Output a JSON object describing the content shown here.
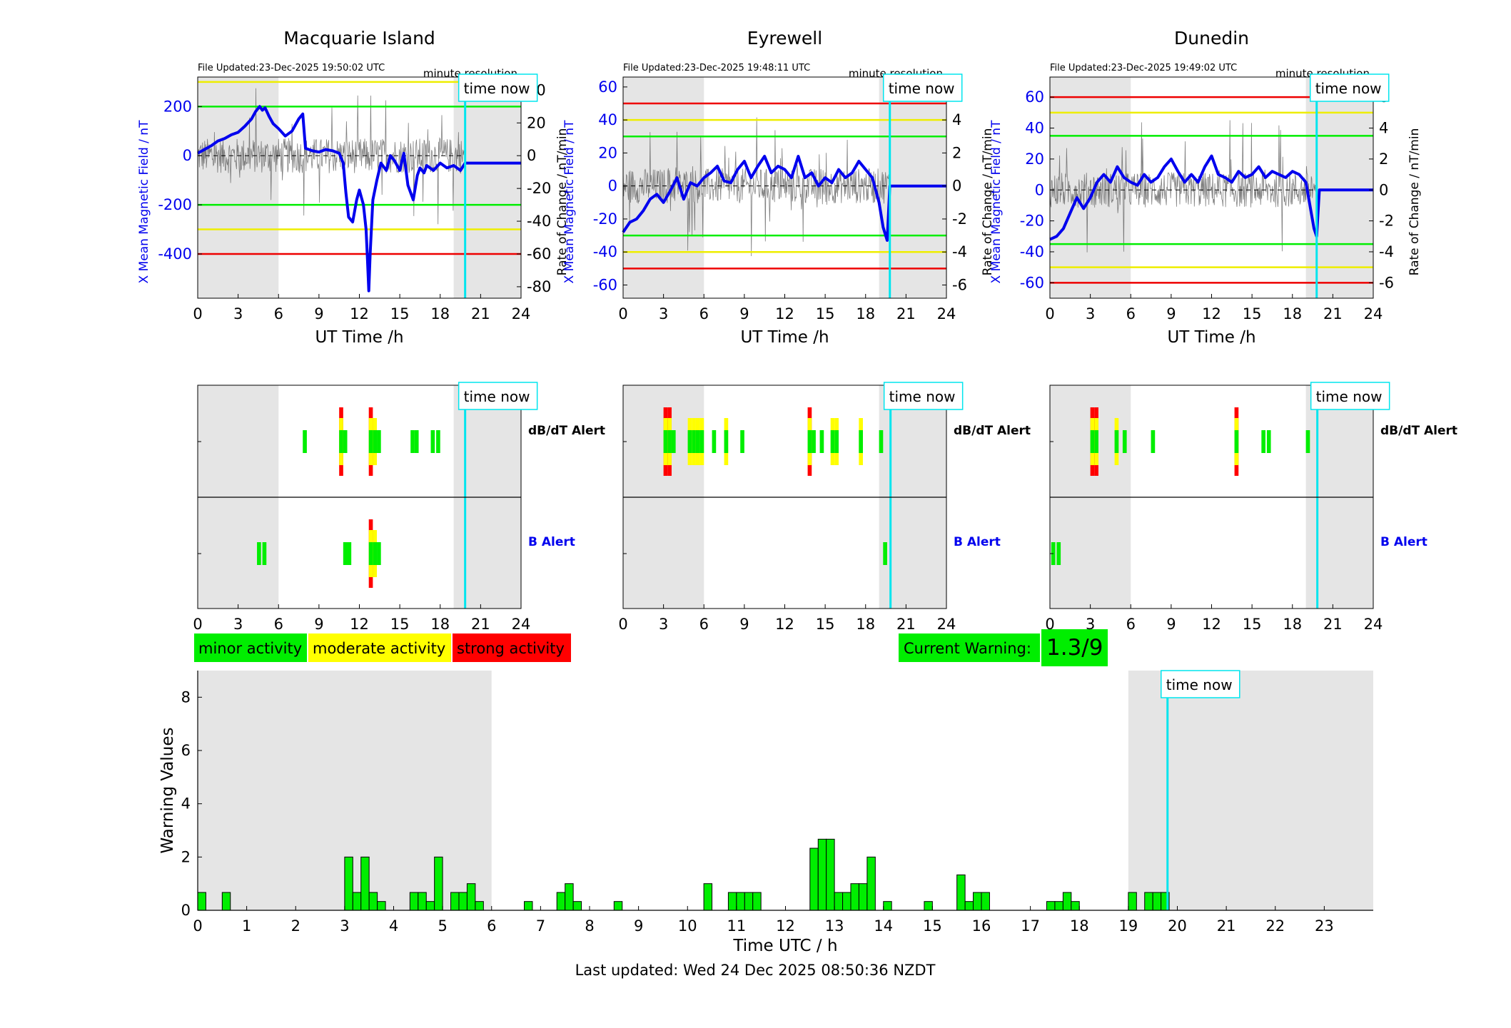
{
  "footer": {
    "last_updated": "Last updated: Wed 24 Dec 2025 08:50:36 NZDT"
  },
  "now_label": "time now",
  "legend": {
    "minor": "minor activity",
    "moderate": "moderate activity",
    "strong": "strong activity"
  },
  "colors": {
    "minor": "#00ee00",
    "moderate": "#ffff00",
    "strong": "#ff0000",
    "now_line": "#00e5ee",
    "field": "#0000ee",
    "shade": "#e5e5e5"
  },
  "current_warning": {
    "label": "Current Warning:",
    "value": "1.3/9"
  },
  "chart_data": [
    {
      "type": "line",
      "title": "Macquarie Island",
      "file_updated": "File Updated:23-Dec-2025 19:50:02 UTC",
      "resolution": "minute resolution",
      "xlabel": "UT Time /h",
      "ylabel": "X Mean Magnetic Field / nT",
      "y2label": "Rate of Change / nT/min",
      "xlim": [
        0,
        24
      ],
      "ylim": [
        -580,
        320
      ],
      "y2lim": [
        -87,
        48
      ],
      "xticks": [
        0,
        3,
        6,
        9,
        12,
        15,
        18,
        21,
        24
      ],
      "yticks": [
        -400,
        -200,
        0,
        200
      ],
      "y2ticks": [
        -80,
        -60,
        -40,
        -20,
        0,
        20,
        40
      ],
      "shade": [
        [
          0,
          6
        ],
        [
          19,
          24
        ]
      ],
      "now": 19.85,
      "thresholds": [
        {
          "y": 300,
          "color": "yellow"
        },
        {
          "y": 200,
          "color": "green"
        },
        {
          "y": -200,
          "color": "green"
        },
        {
          "y": -300,
          "color": "yellow"
        },
        {
          "y": -400,
          "color": "red"
        }
      ],
      "x": [
        0,
        0.5,
        1,
        1.5,
        2,
        2.5,
        3,
        3.5,
        4,
        4.3,
        4.6,
        4.8,
        5,
        5.3,
        5.6,
        6,
        6.5,
        7,
        7.5,
        7.8,
        8,
        8.5,
        9,
        9.5,
        10,
        10.5,
        10.8,
        11,
        11.2,
        11.5,
        11.8,
        12,
        12.3,
        12.5,
        12.6,
        12.7,
        12.8,
        13,
        13.3,
        13.6,
        14,
        14.3,
        14.6,
        15,
        15.3,
        15.6,
        16,
        16.3,
        16.5,
        16.8,
        17,
        17.5,
        18,
        18.5,
        19,
        19.5,
        19.85,
        20,
        24
      ],
      "values": [
        10,
        25,
        40,
        60,
        70,
        85,
        95,
        120,
        150,
        180,
        200,
        185,
        195,
        160,
        130,
        110,
        80,
        100,
        150,
        170,
        30,
        20,
        15,
        25,
        20,
        10,
        -30,
        -150,
        -250,
        -270,
        -180,
        -140,
        -200,
        -300,
        -420,
        -550,
        -400,
        -180,
        -100,
        -30,
        -60,
        0,
        -20,
        -60,
        10,
        -120,
        -180,
        -80,
        -50,
        -70,
        -40,
        -60,
        -30,
        -50,
        -40,
        -60,
        -30,
        -30,
        -30
      ]
    },
    {
      "type": "line",
      "title": "Eyrewell",
      "file_updated": "File Updated:23-Dec-2025 19:48:11 UTC",
      "resolution": "minute resolution",
      "xlabel": "UT Time /h",
      "ylabel": "X Mean Magnetic Field / nT",
      "y2label": "Rate of Change / nT/min",
      "xlim": [
        0,
        24
      ],
      "ylim": [
        -68,
        66
      ],
      "y2lim": [
        -6.8,
        6.6
      ],
      "xticks": [
        0,
        3,
        6,
        9,
        12,
        15,
        18,
        21,
        24
      ],
      "yticks": [
        -60,
        -40,
        -20,
        0,
        20,
        40,
        60
      ],
      "y2ticks": [
        -6,
        -4,
        -2,
        0,
        2,
        4,
        6
      ],
      "shade": [
        [
          0,
          6
        ],
        [
          19,
          24
        ]
      ],
      "now": 19.8,
      "thresholds": [
        {
          "y": 50,
          "color": "red"
        },
        {
          "y": 40,
          "color": "yellow"
        },
        {
          "y": 30,
          "color": "green"
        },
        {
          "y": -30,
          "color": "green"
        },
        {
          "y": -40,
          "color": "yellow"
        },
        {
          "y": -50,
          "color": "red"
        }
      ],
      "x": [
        0,
        0.5,
        1,
        1.5,
        2,
        2.5,
        3,
        3.5,
        4,
        4.5,
        5,
        5.5,
        6,
        6.5,
        7,
        7.5,
        8,
        8.5,
        9,
        9.5,
        10,
        10.5,
        11,
        11.5,
        12,
        12.5,
        13,
        13.5,
        14,
        14.5,
        15,
        15.5,
        16,
        16.5,
        17,
        17.5,
        18,
        18.5,
        19,
        19.3,
        19.6,
        19.8,
        20,
        24
      ],
      "values": [
        -28,
        -22,
        -20,
        -15,
        -8,
        -5,
        -10,
        -3,
        5,
        -8,
        2,
        0,
        5,
        8,
        12,
        3,
        2,
        10,
        15,
        5,
        12,
        18,
        8,
        12,
        10,
        5,
        18,
        5,
        8,
        0,
        5,
        2,
        10,
        5,
        8,
        15,
        10,
        5,
        -10,
        -25,
        -33,
        0,
        0,
        0
      ]
    },
    {
      "type": "line",
      "title": "Dunedin",
      "file_updated": "File Updated:23-Dec-2025 19:49:02 UTC",
      "resolution": "minute resolution",
      "xlabel": "UT Time /h",
      "ylabel": "X Mean Magnetic Field / nT",
      "y2label": "Rate of Change / nT/min",
      "xlim": [
        0,
        24
      ],
      "ylim": [
        -70,
        73
      ],
      "y2lim": [
        -7,
        7.3
      ],
      "xticks": [
        0,
        3,
        6,
        9,
        12,
        15,
        18,
        21,
        24
      ],
      "yticks": [
        -60,
        -40,
        -20,
        0,
        20,
        40,
        60
      ],
      "y2ticks": [
        -6,
        -4,
        -2,
        0,
        2,
        4,
        6
      ],
      "shade": [
        [
          0,
          6
        ],
        [
          19,
          24
        ]
      ],
      "now": 19.8,
      "thresholds": [
        {
          "y": 60,
          "color": "red"
        },
        {
          "y": 50,
          "color": "yellow"
        },
        {
          "y": 35,
          "color": "green"
        },
        {
          "y": -35,
          "color": "green"
        },
        {
          "y": -50,
          "color": "yellow"
        },
        {
          "y": -60,
          "color": "red"
        }
      ],
      "x": [
        0,
        0.5,
        1,
        1.5,
        2,
        2.5,
        3,
        3.5,
        4,
        4.5,
        5,
        5.5,
        6,
        6.5,
        7,
        7.5,
        8,
        8.5,
        9,
        9.5,
        10,
        10.5,
        11,
        11.5,
        12,
        12.5,
        13,
        13.5,
        14,
        14.5,
        15,
        15.5,
        16,
        16.5,
        17,
        17.5,
        18,
        18.5,
        19,
        19.3,
        19.6,
        19.8,
        20,
        24
      ],
      "values": [
        -32,
        -30,
        -25,
        -15,
        -5,
        -12,
        -5,
        5,
        10,
        5,
        15,
        8,
        5,
        3,
        10,
        5,
        8,
        15,
        20,
        12,
        5,
        10,
        5,
        15,
        22,
        10,
        8,
        5,
        12,
        8,
        10,
        15,
        8,
        12,
        10,
        8,
        12,
        10,
        5,
        -10,
        -25,
        -30,
        0,
        0
      ]
    },
    {
      "type": "bar",
      "title": "",
      "panels": [
        "Macquarie Island",
        "Eyrewell",
        "Dunedin"
      ],
      "rows": [
        "dB/dT Alert",
        "B Alert"
      ],
      "xlim": [
        0,
        24
      ],
      "xticks": [
        0,
        3,
        6,
        9,
        12,
        15,
        18,
        21,
        24
      ],
      "shade": [
        [
          0,
          6
        ],
        [
          19,
          24
        ]
      ],
      "now": 19.85,
      "level_scale": "1 = minor activity, 2 = moderate activity, 3 = strong activity",
      "alerts": [
        {
          "dbdt": [
            [
              7.8,
              1
            ],
            [
              10.5,
              3
            ],
            [
              10.8,
              1
            ],
            [
              12.7,
              3
            ],
            [
              13.0,
              2
            ],
            [
              13.3,
              1
            ],
            [
              15.8,
              1
            ],
            [
              16.1,
              1
            ],
            [
              17.3,
              1
            ],
            [
              17.7,
              1
            ]
          ],
          "b": [
            [
              4.4,
              1
            ],
            [
              4.8,
              1
            ],
            [
              10.8,
              1
            ],
            [
              11.1,
              1
            ],
            [
              12.7,
              3
            ],
            [
              13.0,
              2
            ],
            [
              13.3,
              1
            ]
          ]
        },
        {
          "dbdt": [
            [
              3.0,
              3
            ],
            [
              3.3,
              3
            ],
            [
              3.6,
              1
            ],
            [
              4.8,
              2
            ],
            [
              5.1,
              2
            ],
            [
              5.4,
              2
            ],
            [
              5.7,
              2
            ],
            [
              6.6,
              1
            ],
            [
              7.5,
              2
            ],
            [
              8.7,
              1
            ],
            [
              13.7,
              3
            ],
            [
              14.0,
              1
            ],
            [
              14.6,
              1
            ],
            [
              15.4,
              2
            ],
            [
              15.7,
              2
            ],
            [
              17.5,
              2
            ],
            [
              19.0,
              1
            ]
          ],
          "b": [
            [
              19.3,
              1
            ]
          ]
        },
        {
          "dbdt": [
            [
              3.0,
              3
            ],
            [
              3.3,
              3
            ],
            [
              4.8,
              2
            ],
            [
              5.4,
              1
            ],
            [
              7.5,
              1
            ],
            [
              13.7,
              3
            ],
            [
              15.7,
              1
            ],
            [
              16.1,
              1
            ],
            [
              19.0,
              1
            ]
          ],
          "b": [
            [
              0.1,
              1
            ],
            [
              0.5,
              1
            ]
          ]
        }
      ]
    },
    {
      "type": "bar",
      "title": "",
      "xlabel": "Time UTC / h",
      "ylabel": "Warning Values",
      "xlim": [
        0,
        24
      ],
      "ylim": [
        0,
        9
      ],
      "xticks": [
        0,
        1,
        2,
        3,
        4,
        5,
        6,
        7,
        8,
        9,
        10,
        11,
        12,
        13,
        14,
        15,
        16,
        17,
        18,
        19,
        20,
        21,
        22,
        23
      ],
      "yticks": [
        0,
        2,
        4,
        6,
        8
      ],
      "shade": [
        [
          0,
          6
        ],
        [
          19,
          24
        ]
      ],
      "now": 19.8,
      "bar_width": 0.1667,
      "bars": [
        [
          0.0,
          0.67
        ],
        [
          0.5,
          0.67
        ],
        [
          3.0,
          2.0
        ],
        [
          3.167,
          0.67
        ],
        [
          3.333,
          2.0
        ],
        [
          3.5,
          0.67
        ],
        [
          3.667,
          0.33
        ],
        [
          4.333,
          0.67
        ],
        [
          4.5,
          0.67
        ],
        [
          4.667,
          0.33
        ],
        [
          4.833,
          2.0
        ],
        [
          5.167,
          0.67
        ],
        [
          5.333,
          0.67
        ],
        [
          5.5,
          1.0
        ],
        [
          5.667,
          0.33
        ],
        [
          6.667,
          0.33
        ],
        [
          7.333,
          0.67
        ],
        [
          7.5,
          1.0
        ],
        [
          7.667,
          0.33
        ],
        [
          8.5,
          0.33
        ],
        [
          10.333,
          1.0
        ],
        [
          10.833,
          0.67
        ],
        [
          11.0,
          0.67
        ],
        [
          11.167,
          0.67
        ],
        [
          11.333,
          0.67
        ],
        [
          12.5,
          2.33
        ],
        [
          12.667,
          2.67
        ],
        [
          12.833,
          2.67
        ],
        [
          13.0,
          0.67
        ],
        [
          13.167,
          0.67
        ],
        [
          13.333,
          1.0
        ],
        [
          13.5,
          1.0
        ],
        [
          13.667,
          2.0
        ],
        [
          14.0,
          0.33
        ],
        [
          14.833,
          0.33
        ],
        [
          15.5,
          1.33
        ],
        [
          15.667,
          0.33
        ],
        [
          15.833,
          0.67
        ],
        [
          16.0,
          0.67
        ],
        [
          17.333,
          0.33
        ],
        [
          17.5,
          0.33
        ],
        [
          17.667,
          0.67
        ],
        [
          17.833,
          0.33
        ],
        [
          19.0,
          0.67
        ],
        [
          19.333,
          0.67
        ],
        [
          19.5,
          0.67
        ],
        [
          19.667,
          0.67
        ]
      ]
    }
  ]
}
